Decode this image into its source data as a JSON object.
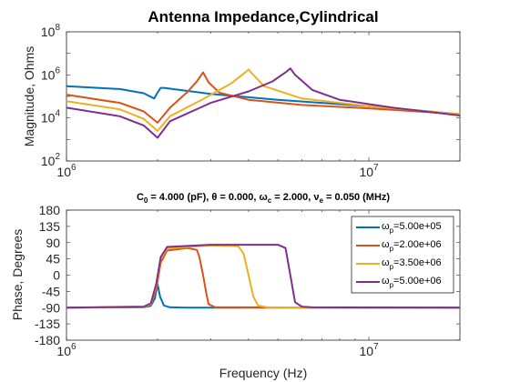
{
  "chart_data": [
    {
      "type": "line",
      "title": "Antenna Impedance,Cylindrical",
      "subtitle": {
        "C": "C",
        "C_sub": "0",
        "C_val": " = 4.000 (pF), ",
        "theta": "θ",
        "theta_val": " = 0.000, ",
        "omega": "ω",
        "omega_sub": "c",
        "omega_val": " = 2.000, ",
        "nu": "ν",
        "nu_sub": "e",
        "nu_val": " = 0.050 (MHz)"
      },
      "xlabel": "",
      "ylabel": "Magnitude, Ohms",
      "xscale": "log",
      "yscale": "log",
      "xlim": [
        1000000,
        20000000
      ],
      "ylim": [
        100,
        100000000
      ],
      "x_ticks": [
        {
          "base": "10",
          "exp": "6"
        },
        {
          "base": "10",
          "exp": "7"
        }
      ],
      "y_ticks": [
        {
          "base": "10",
          "exp": "2"
        },
        {
          "base": "10",
          "exp": "4"
        },
        {
          "base": "10",
          "exp": "6"
        },
        {
          "base": "10",
          "exp": "8"
        }
      ],
      "series": [
        {
          "color": "#0072BD",
          "x": [
            1000000,
            1500000,
            1800000,
            1950000,
            2000000,
            2050000,
            2100000,
            3000000,
            5000000,
            10000000,
            20000000
          ],
          "y": [
            300000,
            220000,
            140000,
            80000,
            150000,
            250000,
            250000,
            130000,
            70000,
            35000,
            15000
          ]
        },
        {
          "color": "#D95319",
          "x": [
            1000000,
            1500000,
            1800000,
            2000000,
            2200000,
            2500000,
            2700000,
            2830000,
            2950000,
            3200000,
            4000000,
            6000000,
            10000000,
            20000000
          ],
          "y": [
            120000,
            50000,
            20000,
            6000,
            30000,
            150000,
            500000,
            1300000,
            450000,
            150000,
            70000,
            40000,
            28000,
            15000
          ]
        },
        {
          "color": "#EDB120",
          "x": [
            1000000,
            1500000,
            1800000,
            2000000,
            2200000,
            2800000,
            3500000,
            3900000,
            4000000,
            4100000,
            4500000,
            6000000,
            10000000,
            20000000
          ],
          "y": [
            60000,
            25000,
            9000,
            2500,
            12000,
            70000,
            400000,
            1300000,
            1800000,
            1200000,
            300000,
            80000,
            35000,
            15000
          ]
        },
        {
          "color": "#7E2F8E",
          "x": [
            1000000,
            1500000,
            1800000,
            2000000,
            2200000,
            3000000,
            4000000,
            4800000,
            5300000,
            5500000,
            5700000,
            6500000,
            8000000,
            12000000,
            20000000
          ],
          "y": [
            30000,
            12000,
            4500,
            1200,
            7000,
            50000,
            170000,
            500000,
            1300000,
            2000000,
            1000000,
            200000,
            70000,
            30000,
            13000
          ]
        }
      ]
    },
    {
      "type": "line",
      "xlabel": "Frequency (Hz)",
      "ylabel": "Phase, Degrees",
      "xscale": "log",
      "xlim": [
        1000000,
        20000000
      ],
      "ylim": [
        -180,
        180
      ],
      "x_ticks": [
        {
          "base": "10",
          "exp": "6"
        },
        {
          "base": "10",
          "exp": "7"
        }
      ],
      "y_ticks": [
        "180",
        "135",
        "90",
        "45",
        "0",
        "-45",
        "-90",
        "-135",
        "-180"
      ],
      "y_tick_values": [
        180,
        135,
        90,
        45,
        0,
        -45,
        -90,
        -135,
        -180
      ],
      "legend_position": "top-right",
      "series": [
        {
          "name": {
            "sym": "ω",
            "sub": "p",
            "val": "=5.00e+05"
          },
          "color": "#0072BD",
          "x": [
            1000000,
            1800000,
            1900000,
            1960000,
            2000000,
            2040000,
            2100000,
            2200000,
            2500000,
            20000000
          ],
          "y": [
            -90,
            -89,
            -85,
            -65,
            -25,
            -60,
            -84,
            -89,
            -90,
            -90
          ]
        },
        {
          "name": {
            "sym": "ω",
            "sub": "p",
            "val": "=2.00e+06"
          },
          "color": "#D95319",
          "x": [
            1000000,
            1800000,
            1900000,
            1980000,
            2050000,
            2150000,
            2500000,
            2700000,
            2750000,
            2830000,
            2900000,
            2950000,
            3100000,
            20000000
          ],
          "y": [
            -90,
            -88,
            -82,
            -40,
            35,
            68,
            75,
            70,
            50,
            0,
            -50,
            -80,
            -89,
            -90
          ]
        },
        {
          "name": {
            "sym": "ω",
            "sub": "p",
            "val": "=3.50e+06"
          },
          "color": "#EDB120",
          "x": [
            1000000,
            1800000,
            1900000,
            1980000,
            2050000,
            2150000,
            3000000,
            3700000,
            3850000,
            4000000,
            4150000,
            4300000,
            4600000,
            20000000
          ],
          "y": [
            -90,
            -88,
            -80,
            -30,
            45,
            74,
            82,
            80,
            60,
            0,
            -60,
            -84,
            -89,
            -90
          ]
        },
        {
          "name": {
            "sym": "ω",
            "sub": "p",
            "val": "=5.00e+06"
          },
          "color": "#7E2F8E",
          "x": [
            1000000,
            1800000,
            1900000,
            1980000,
            2050000,
            2150000,
            3000000,
            5000000,
            5300000,
            5500000,
            5700000,
            6000000,
            6500000,
            20000000
          ],
          "y": [
            -90,
            -87,
            -78,
            -25,
            50,
            78,
            84,
            84,
            75,
            0,
            -75,
            -87,
            -89,
            -90
          ]
        }
      ]
    }
  ]
}
